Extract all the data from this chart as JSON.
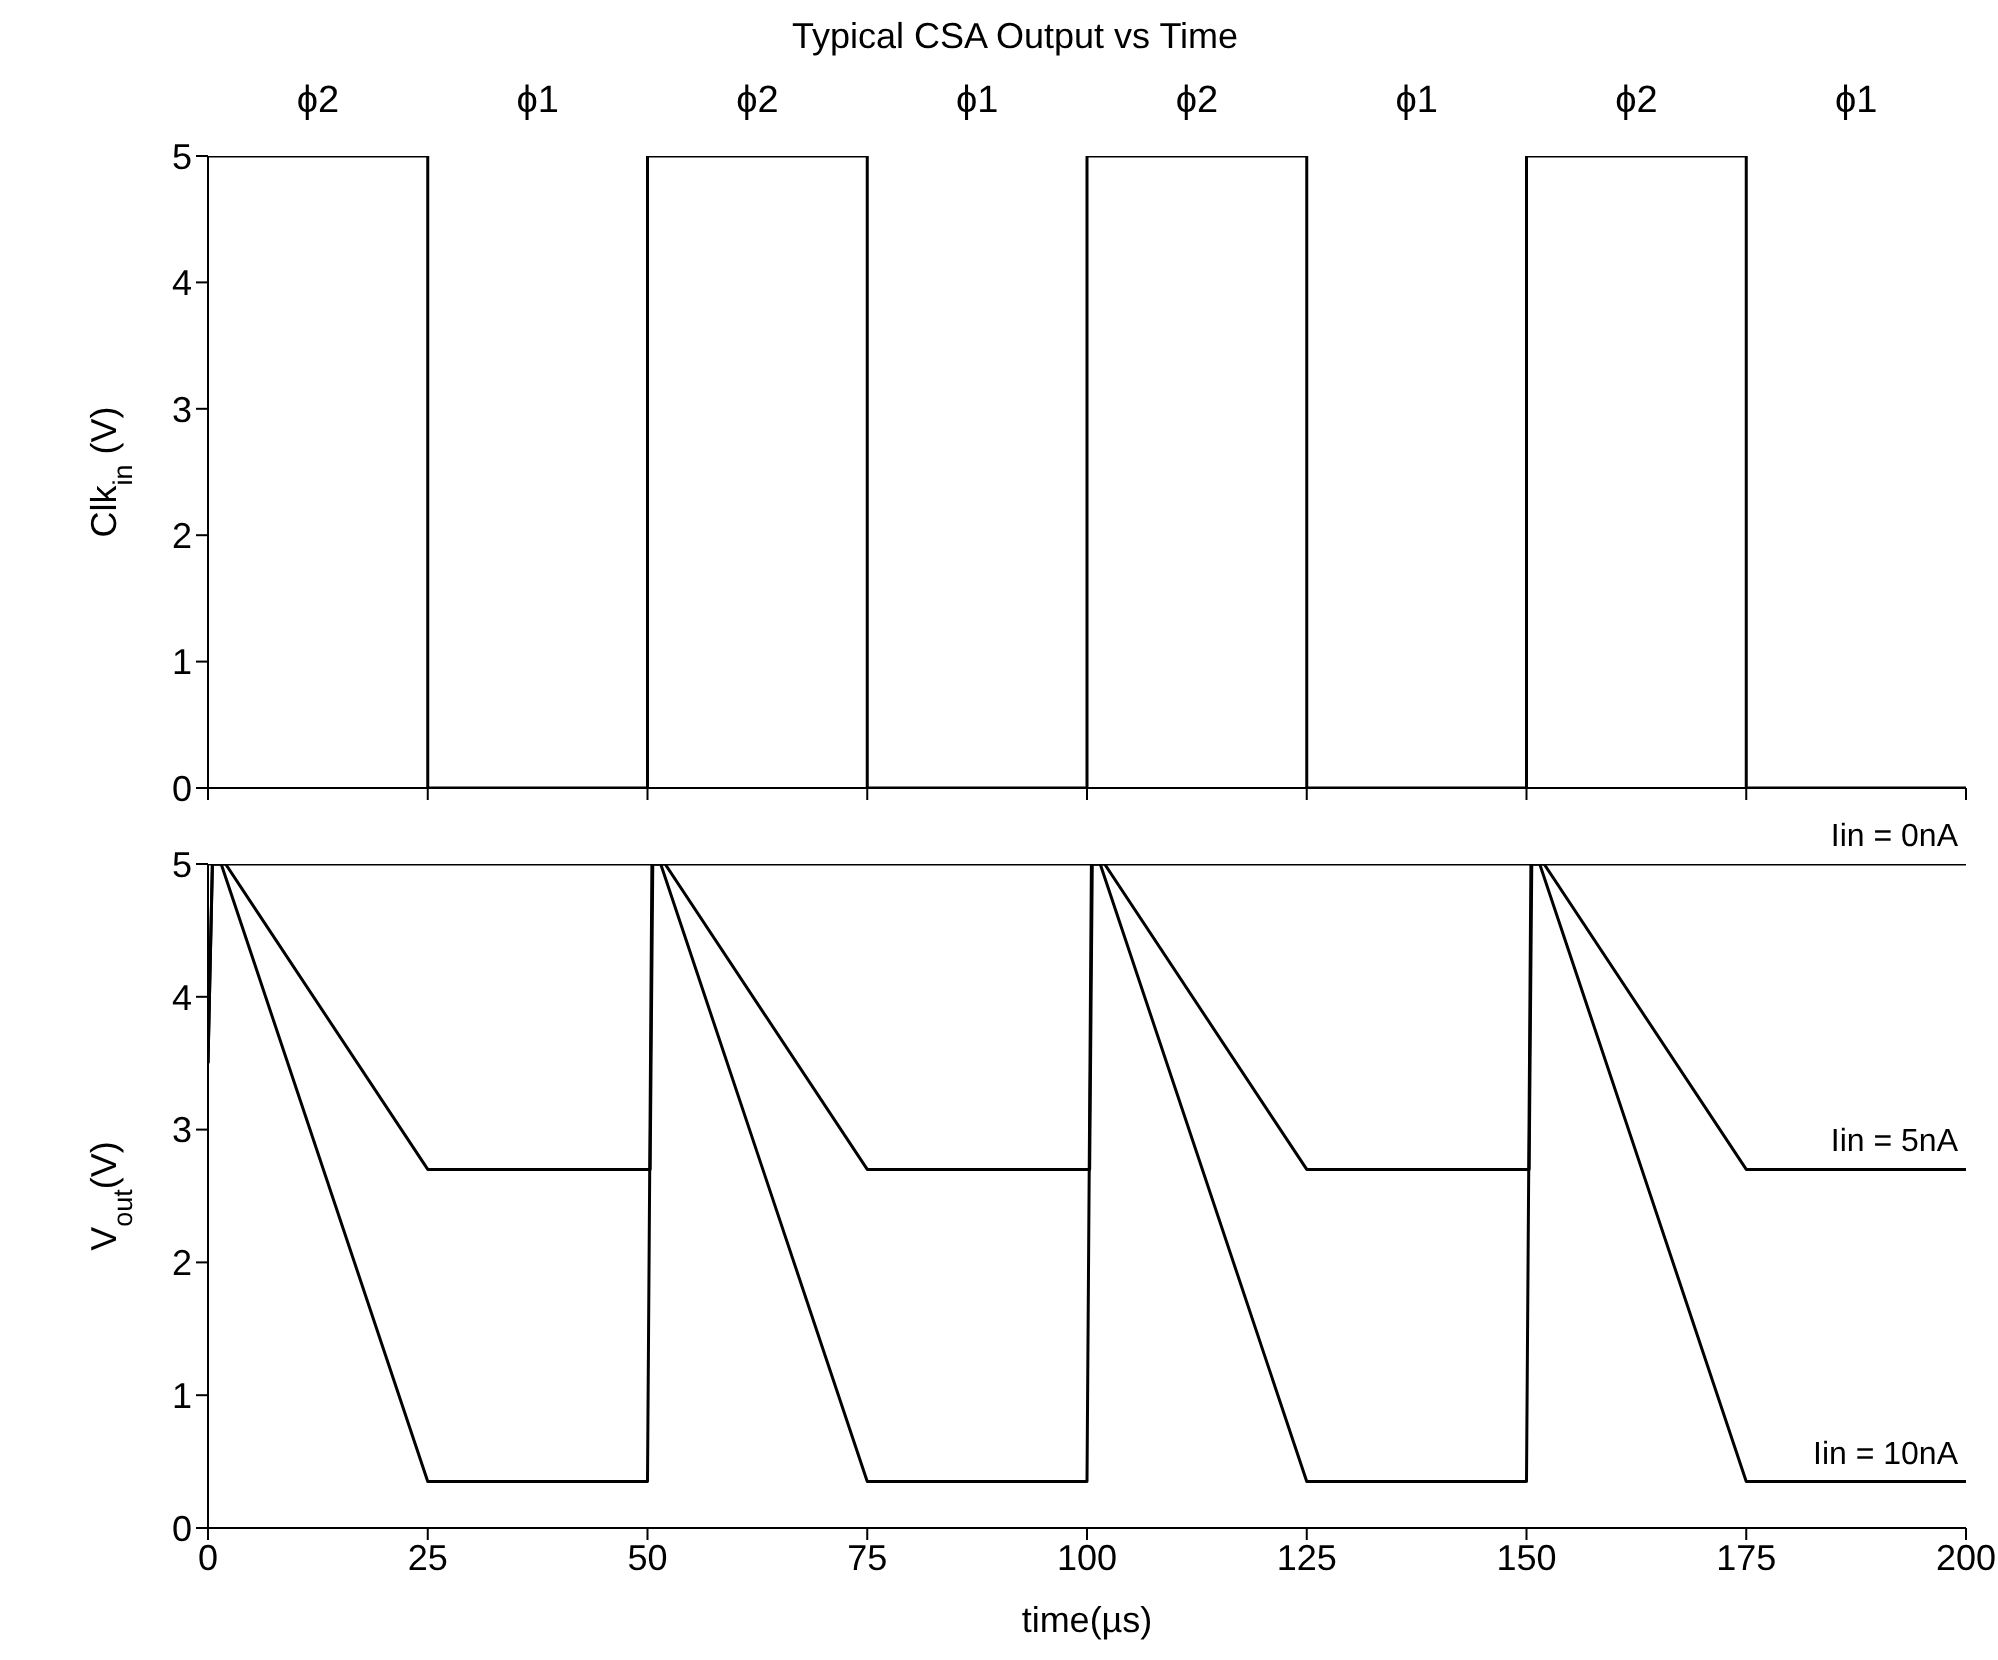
{
  "chart_data": [
    {
      "type": "line",
      "title": "Typical CSA Output vs Time",
      "ylabel": "Clk$_{in}$ (V)",
      "xlim": [
        0,
        200
      ],
      "xticks": [
        0,
        25,
        50,
        75,
        100,
        125,
        150,
        175,
        200
      ],
      "ylim": [
        0,
        5
      ],
      "yticks": [
        0,
        1,
        2,
        3,
        4,
        5
      ],
      "tick_labels": "y",
      "marker": "none",
      "line_style": "solid",
      "annotations": [
        "ϕ2",
        "ϕ1",
        "ϕ2",
        "ϕ1",
        "ϕ2",
        "ϕ1",
        "ϕ2",
        "ϕ1"
      ],
      "series": [
        {
          "color": "#000000",
          "x": [
            0,
            25,
            25,
            50,
            50,
            75,
            75,
            100,
            100,
            125,
            125,
            150,
            150,
            175,
            175,
            200
          ],
          "values": [
            5,
            5,
            0,
            0,
            5,
            5,
            0,
            0,
            5,
            5,
            0,
            0,
            5,
            5,
            0,
            0
          ]
        }
      ]
    },
    {
      "type": "line",
      "xlabel": "time(µs)",
      "ylabel": "V$_{out}$(V)",
      "xlim": [
        0,
        200
      ],
      "xticks": [
        0,
        25,
        50,
        75,
        100,
        125,
        150,
        175,
        200
      ],
      "ylim": [
        0,
        5
      ],
      "yticks": [
        0,
        1,
        2,
        3,
        4,
        5
      ],
      "marker": "none",
      "line_style": "solid",
      "series": [
        {
          "name": "Iin = 0nA",
          "color": "#000000",
          "x": [
            0,
            200
          ],
          "values": [
            5,
            5
          ]
        },
        {
          "name": "Iin = 5nA",
          "color": "#000000",
          "x": [
            0,
            0.5,
            2,
            25,
            50.3,
            50.6,
            52,
            75,
            100.3,
            100.6,
            102,
            125,
            150.3,
            150.6,
            152,
            175,
            200
          ],
          "values": [
            3.5,
            5,
            5,
            2.7,
            2.7,
            5,
            5,
            2.7,
            2.7,
            5,
            5,
            2.7,
            2.7,
            5,
            5,
            2.7,
            2.7
          ]
        },
        {
          "name": "Iin = 10nA",
          "color": "#000000",
          "x": [
            0,
            0.5,
            1.5,
            25,
            50,
            50.5,
            51.5,
            75,
            100,
            100.5,
            101.5,
            125,
            150,
            150.5,
            151.5,
            175,
            200
          ],
          "values": [
            3.5,
            5,
            5,
            0.35,
            0.35,
            5,
            5,
            0.35,
            0.35,
            5,
            5,
            0.35,
            0.35,
            5,
            5,
            0.35,
            0.35
          ]
        }
      ]
    }
  ]
}
